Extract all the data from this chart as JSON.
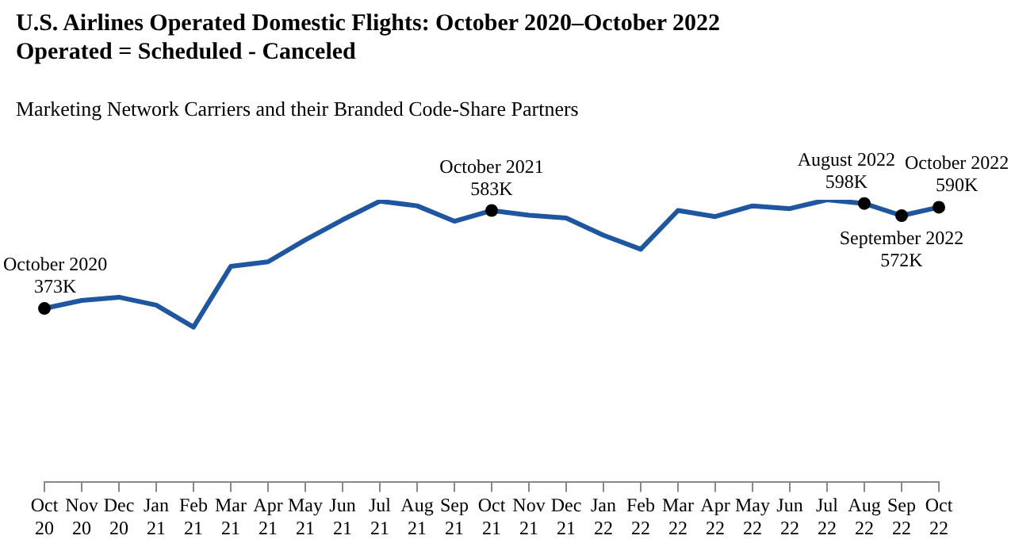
{
  "chart_data": {
    "type": "line",
    "title": "U.S. Airlines Operated Domestic Flights: October 2020–October 2022\nOperated = Scheduled - Canceled",
    "subtitle": "Marketing Network Carriers and their Branded Code-Share Partners",
    "categories": [
      "Oct 20",
      "Nov 20",
      "Dec 20",
      "Jan 21",
      "Feb 21",
      "Mar 21",
      "Apr 21",
      "May 21",
      "Jun 21",
      "Jul 21",
      "Aug 21",
      "Sep 21",
      "Oct 21",
      "Nov 21",
      "Dec 21",
      "Jan 22",
      "Feb 22",
      "Mar 22",
      "Apr 22",
      "May 22",
      "Jun 22",
      "Jul 22",
      "Aug 22",
      "Sep 22",
      "Oct 22"
    ],
    "series": [
      {
        "color": "#1f56a0",
        "values": [
          373,
          390,
          397,
          380,
          333,
          463,
          473,
          520,
          563,
          603,
          593,
          560,
          583,
          573,
          567,
          530,
          500,
          583,
          570,
          593,
          587,
          606,
          598,
          572,
          590
        ],
        "value_labels": [
          "373K",
          null,
          null,
          null,
          null,
          null,
          null,
          null,
          null,
          null,
          null,
          null,
          "583K",
          null,
          null,
          null,
          null,
          null,
          null,
          null,
          null,
          null,
          "598K",
          "572K",
          "590K"
        ]
      }
    ],
    "grid": false,
    "legend": false,
    "marker": "none",
    "line_style": "solid",
    "tick_labels": "x",
    "annotations": [
      "October 2020",
      "October 2021",
      "August 2022",
      "September 2022",
      "October 2022"
    ]
  }
}
